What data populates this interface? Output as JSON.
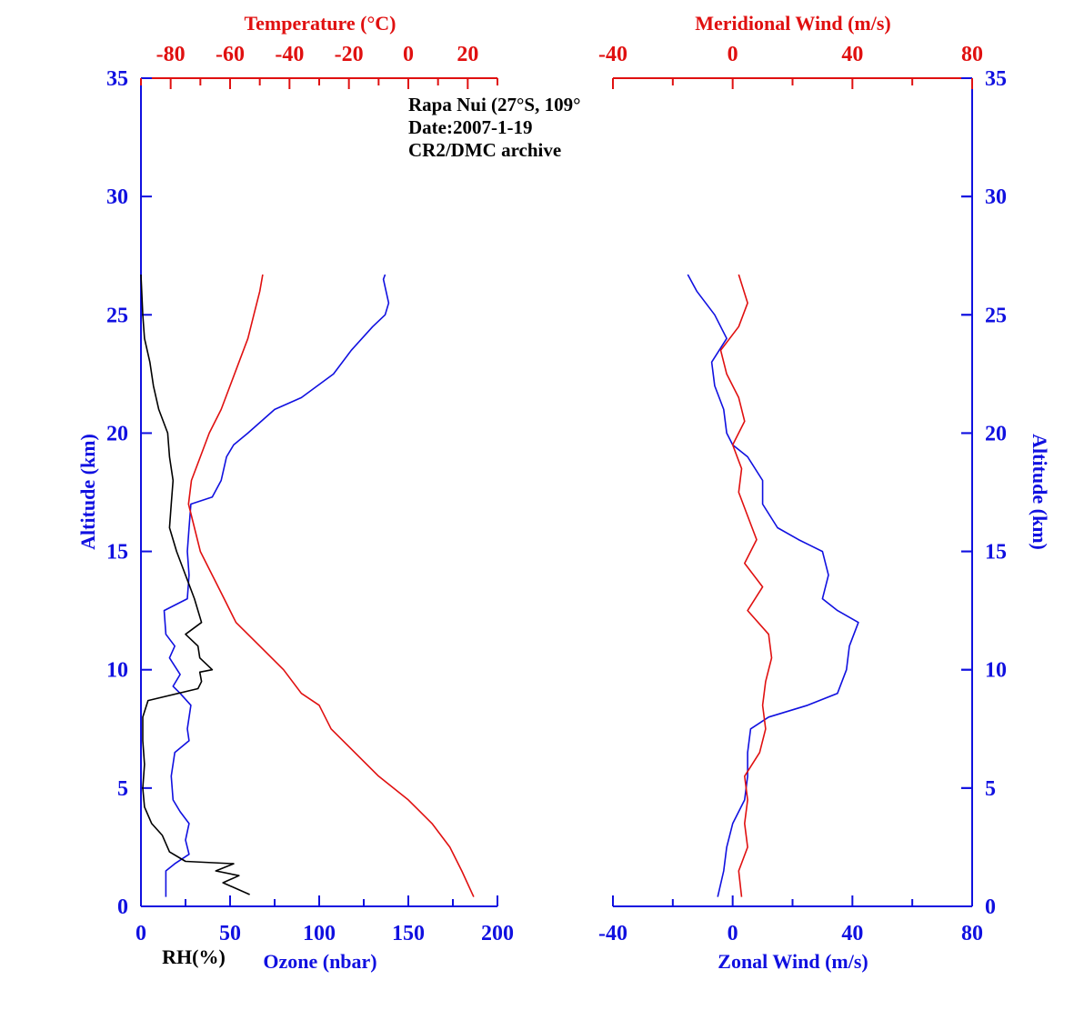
{
  "colors": {
    "blue": "#1010e0",
    "red": "#e01010",
    "black": "#000000"
  },
  "annotation": [
    "Rapa Nui (27°S, 109°",
    "Date:2007-1-19",
    "CR2/DMC archive"
  ],
  "chart_data": [
    {
      "panel": "left",
      "type": "line",
      "ylabel": "Altitude (km)",
      "ylim": [
        0,
        35
      ],
      "yticks": [
        0,
        5,
        10,
        15,
        20,
        25,
        30,
        35
      ],
      "bottom_axis": {
        "label": "Ozone (nbar)",
        "extra_label": "RH(%)",
        "range": [
          0,
          200
        ],
        "ticks": [
          0,
          50,
          100,
          150,
          200
        ]
      },
      "top_axis": {
        "label": "Temperature (°C)",
        "range": [
          -90,
          30
        ],
        "ticks": [
          -80,
          -60,
          -40,
          -20,
          0,
          20
        ]
      },
      "series": [
        {
          "name": "Ozone (nbar)",
          "axis": "bottom",
          "color": "blue",
          "points": [
            [
              14,
              0.4
            ],
            [
              14,
              1.5
            ],
            [
              19,
              1.8
            ],
            [
              27,
              2.2
            ],
            [
              25,
              2.8
            ],
            [
              27,
              3.5
            ],
            [
              22,
              4
            ],
            [
              18,
              4.5
            ],
            [
              17,
              5.5
            ],
            [
              19,
              6.5
            ],
            [
              27,
              7
            ],
            [
              26,
              7.5
            ],
            [
              28,
              8.5
            ],
            [
              22,
              9
            ],
            [
              18,
              9.3
            ],
            [
              22,
              9.8
            ],
            [
              16,
              10.5
            ],
            [
              19,
              11
            ],
            [
              14,
              11.5
            ],
            [
              13,
              12.5
            ],
            [
              26,
              13
            ],
            [
              27,
              14
            ],
            [
              26,
              15
            ],
            [
              27,
              16
            ],
            [
              28,
              17
            ],
            [
              40,
              17.3
            ],
            [
              45,
              18
            ],
            [
              48,
              19
            ],
            [
              52,
              19.5
            ],
            [
              60,
              20
            ],
            [
              75,
              21
            ],
            [
              90,
              21.5
            ],
            [
              108,
              22.5
            ],
            [
              118,
              23.5
            ],
            [
              130,
              24.5
            ],
            [
              137,
              25
            ],
            [
              139,
              25.5
            ],
            [
              136,
              26.5
            ],
            [
              137,
              26.7
            ]
          ]
        },
        {
          "name": "Temperature (°C)",
          "axis": "top",
          "color": "red",
          "points": [
            [
              22,
              0.4
            ],
            [
              18,
              1.5
            ],
            [
              14,
              2.5
            ],
            [
              8,
              3.5
            ],
            [
              0,
              4.5
            ],
            [
              -10,
              5.5
            ],
            [
              -18,
              6.5
            ],
            [
              -26,
              7.5
            ],
            [
              -30,
              8.5
            ],
            [
              -36,
              9
            ],
            [
              -42,
              10
            ],
            [
              -50,
              11
            ],
            [
              -58,
              12
            ],
            [
              -62,
              13
            ],
            [
              -66,
              14
            ],
            [
              -70,
              15
            ],
            [
              -72,
              16
            ],
            [
              -74,
              17
            ],
            [
              -73,
              18
            ],
            [
              -70,
              19
            ],
            [
              -67,
              20
            ],
            [
              -63,
              21
            ],
            [
              -60,
              22
            ],
            [
              -57,
              23
            ],
            [
              -54,
              24
            ],
            [
              -52,
              25
            ],
            [
              -50,
              26
            ],
            [
              -49,
              26.7
            ]
          ]
        },
        {
          "name": "RH(%)",
          "axis": "bottom",
          "color": "black",
          "points": [
            [
              61,
              0.5
            ],
            [
              46,
              1
            ],
            [
              55,
              1.3
            ],
            [
              42,
              1.5
            ],
            [
              52,
              1.8
            ],
            [
              25,
              1.9
            ],
            [
              16,
              2.3
            ],
            [
              12,
              3
            ],
            [
              6,
              3.5
            ],
            [
              2,
              4.2
            ],
            [
              1,
              5
            ],
            [
              2,
              6
            ],
            [
              1,
              7
            ],
            [
              1,
              8
            ],
            [
              4,
              8.7
            ],
            [
              32,
              9.2
            ],
            [
              34,
              9.5
            ],
            [
              33,
              9.9
            ],
            [
              40,
              10
            ],
            [
              33,
              10.5
            ],
            [
              32,
              11
            ],
            [
              25,
              11.5
            ],
            [
              34,
              12
            ],
            [
              30,
              13
            ],
            [
              25,
              14
            ],
            [
              20,
              15
            ],
            [
              16,
              16
            ],
            [
              17,
              17
            ],
            [
              18,
              18
            ],
            [
              16,
              19
            ],
            [
              15,
              20
            ],
            [
              10,
              21
            ],
            [
              7,
              22
            ],
            [
              5,
              23
            ],
            [
              2,
              24
            ],
            [
              1,
              25
            ],
            [
              0,
              26.7
            ]
          ]
        }
      ]
    },
    {
      "panel": "right",
      "type": "line",
      "ylabel": "Altitude (km)",
      "ylim": [
        0,
        35
      ],
      "yticks": [
        0,
        5,
        10,
        15,
        20,
        25,
        30,
        35
      ],
      "bottom_axis": {
        "label": "Zonal Wind (m/s)",
        "range": [
          -40,
          80
        ],
        "ticks": [
          -40,
          0,
          40,
          80
        ]
      },
      "top_axis": {
        "label": "Meridional Wind (m/s)",
        "range": [
          -40,
          80
        ],
        "ticks": [
          -40,
          0,
          40,
          80
        ]
      },
      "series": [
        {
          "name": "Zonal Wind (m/s)",
          "axis": "bottom",
          "color": "blue",
          "points": [
            [
              -5,
              0.4
            ],
            [
              -3,
              1.5
            ],
            [
              -2,
              2.5
            ],
            [
              0,
              3.5
            ],
            [
              4,
              4.5
            ],
            [
              5,
              5.5
            ],
            [
              5,
              6.5
            ],
            [
              6,
              7.5
            ],
            [
              12,
              8
            ],
            [
              25,
              8.5
            ],
            [
              35,
              9
            ],
            [
              38,
              10
            ],
            [
              39,
              11
            ],
            [
              42,
              12
            ],
            [
              35,
              12.5
            ],
            [
              30,
              13
            ],
            [
              32,
              14
            ],
            [
              30,
              15
            ],
            [
              22,
              15.5
            ],
            [
              15,
              16
            ],
            [
              10,
              17
            ],
            [
              10,
              18
            ],
            [
              5,
              19
            ],
            [
              0,
              19.5
            ],
            [
              -2,
              20
            ],
            [
              -3,
              21
            ],
            [
              -6,
              22
            ],
            [
              -7,
              23
            ],
            [
              -2,
              24
            ],
            [
              -6,
              25
            ],
            [
              -12,
              26
            ],
            [
              -15,
              26.7
            ]
          ]
        },
        {
          "name": "Meridional Wind (m/s)",
          "axis": "top",
          "color": "red",
          "points": [
            [
              3,
              0.4
            ],
            [
              2,
              1.5
            ],
            [
              5,
              2.5
            ],
            [
              4,
              3.5
            ],
            [
              5,
              4.5
            ],
            [
              4,
              5.5
            ],
            [
              9,
              6.5
            ],
            [
              11,
              7.5
            ],
            [
              10,
              8.5
            ],
            [
              11,
              9.5
            ],
            [
              13,
              10.5
            ],
            [
              12,
              11.5
            ],
            [
              5,
              12.5
            ],
            [
              10,
              13.5
            ],
            [
              4,
              14.5
            ],
            [
              8,
              15.5
            ],
            [
              5,
              16.5
            ],
            [
              2,
              17.5
            ],
            [
              3,
              18.5
            ],
            [
              0,
              19.5
            ],
            [
              4,
              20.5
            ],
            [
              2,
              21.5
            ],
            [
              -2,
              22.5
            ],
            [
              -4,
              23.5
            ],
            [
              2,
              24.5
            ],
            [
              5,
              25.5
            ],
            [
              2,
              26.7
            ]
          ]
        }
      ]
    }
  ]
}
